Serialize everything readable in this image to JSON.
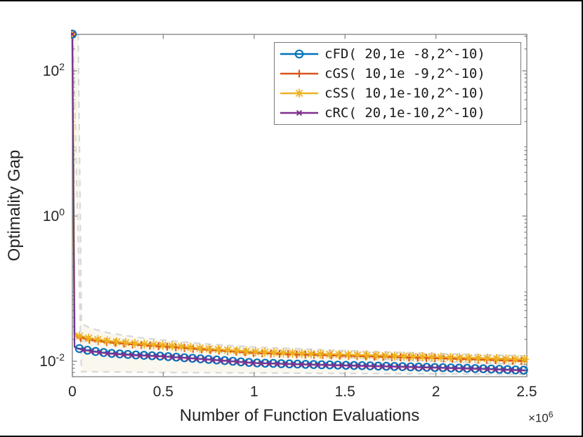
{
  "figure": {
    "background": "#ffffff",
    "axis_color": "#7f7f7f",
    "text_color": "#262626",
    "legend_border_color": "#7a7a7a"
  },
  "chart_data": {
    "type": "line",
    "yscale": "log",
    "title": "",
    "xlabel": "Number of Function Evaluations",
    "ylabel": "Optimality Gap",
    "x_multiplier_base": "×10",
    "x_multiplier_exp": "6",
    "xlim": [
      0,
      2500000
    ],
    "ylim_log10": [
      -2.21,
      2.5
    ],
    "x_ticks": [
      0,
      500000,
      1000000,
      1500000,
      2000000,
      2500000
    ],
    "x_tick_labels": [
      "0",
      "0.5",
      "1",
      "1.5",
      "2",
      "2.5"
    ],
    "y_tick_exponents": [
      2,
      0,
      -2
    ],
    "legend_position": "top-right",
    "grid": false,
    "x": [
      0,
      12000,
      30000,
      100000,
      200000,
      350000,
      500000,
      750000,
      1000000,
      1250000,
      1500000,
      1750000,
      2000000,
      2250000,
      2500000
    ],
    "series": [
      {
        "name": "cGS( 10,1e -9,2^-10)",
        "color": "#D95319",
        "marker": "plus",
        "values": [
          320,
          0.0228,
          0.0214,
          0.0196,
          0.0182,
          0.0169,
          0.016,
          0.0143,
          0.013,
          0.0124,
          0.0119,
          0.0114,
          0.011,
          0.0105,
          0.01
        ]
      },
      {
        "name": "cSS( 10,1e-10,2^-10)",
        "color": "#EDB120",
        "marker": "asterisk",
        "values": [
          320,
          0.024,
          0.0225,
          0.0205,
          0.019,
          0.0175,
          0.0166,
          0.0148,
          0.0135,
          0.0128,
          0.0123,
          0.0119,
          0.0114,
          0.011,
          0.0106
        ]
      },
      {
        "name": "cFD( 20,1e -8,2^-10)",
        "color": "#0072BD",
        "marker": "circle",
        "values": [
          320,
          0.016,
          0.0151,
          0.0139,
          0.0129,
          0.0122,
          0.0117,
          0.0106,
          0.0095,
          0.0091,
          0.0088,
          0.0085,
          0.0082,
          0.0079,
          0.0075
        ]
      },
      {
        "name": "cRC( 20,1e-10,2^-10)",
        "color": "#7E2F8E",
        "marker": "x",
        "values": [
          320,
          0.0157,
          0.0148,
          0.0137,
          0.0127,
          0.012,
          0.0116,
          0.0105,
          0.0094,
          0.009,
          0.0087,
          0.0084,
          0.0081,
          0.0078,
          0.0074
        ]
      }
    ],
    "legend_order_names": [
      "cFD( 20,1e -8,2^-10)",
      "cGS( 10,1e -9,2^-10)",
      "cSS( 10,1e-10,2^-10)",
      "cRC( 20,1e-10,2^-10)"
    ],
    "bands": {
      "line_color": "#d8d8d8",
      "fill_color": "#f6f0e0",
      "upper": {
        "x": [
          32000,
          50000,
          100000,
          200000,
          350000,
          500000,
          750000,
          1000000,
          1500000,
          2000000,
          2500000
        ],
        "y": [
          320,
          0.033,
          0.0285,
          0.0245,
          0.0215,
          0.0195,
          0.0172,
          0.0157,
          0.014,
          0.0128,
          0.0119
        ]
      },
      "mid": {
        "x": [
          50000,
          500000,
          1000000,
          1500000,
          2000000,
          2500000
        ],
        "y": [
          0.019,
          0.016,
          0.013,
          0.0113,
          0.01,
          0.009
        ]
      },
      "lower": {
        "x": [
          4000,
          50000,
          500000,
          1000000,
          1500000,
          2000000,
          2500000
        ],
        "y": [
          320,
          0.0072,
          0.007,
          0.0069,
          0.0068,
          0.0067,
          0.0066
        ]
      }
    }
  }
}
